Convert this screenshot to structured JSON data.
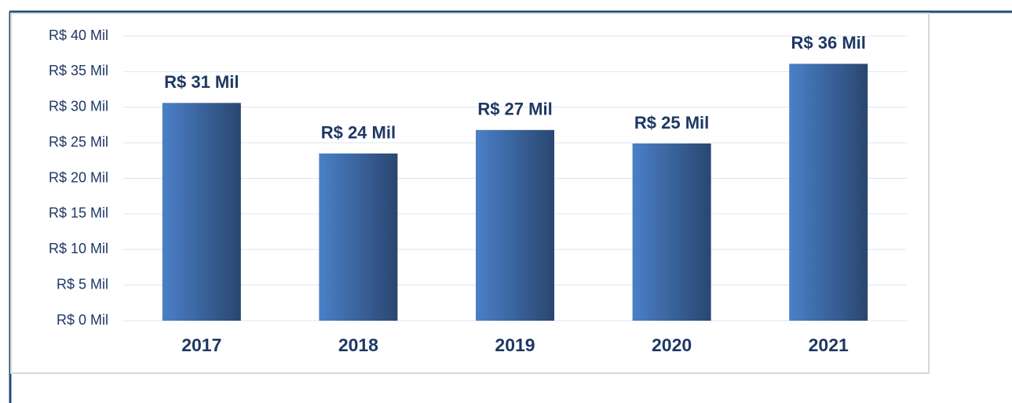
{
  "chart_data": {
    "type": "bar",
    "categories": [
      "2017",
      "2018",
      "2019",
      "2020",
      "2021"
    ],
    "values": [
      30.6,
      23.5,
      26.8,
      24.9,
      36.1
    ],
    "value_labels": [
      "R$ 31 Mil",
      "R$ 24 Mil",
      "R$ 27 Mil",
      "R$ 25 Mil",
      "R$ 36 Mil"
    ],
    "color": "#3d6aa8",
    "ylim": [
      0,
      40
    ],
    "yticks": [
      {
        "value": 0,
        "label": "R$ 0 Mil"
      },
      {
        "value": 5,
        "label": "R$ 5 Mil"
      },
      {
        "value": 10,
        "label": "R$ 10 Mil"
      },
      {
        "value": 15,
        "label": "R$ 15 Mil"
      },
      {
        "value": 20,
        "label": "R$ 20 Mil"
      },
      {
        "value": 25,
        "label": "R$ 25 Mil"
      },
      {
        "value": 30,
        "label": "R$ 30 Mil"
      },
      {
        "value": 35,
        "label": "R$ 35 Mil"
      },
      {
        "value": 40,
        "label": "R$ 40 Mil"
      }
    ],
    "grid": true
  }
}
